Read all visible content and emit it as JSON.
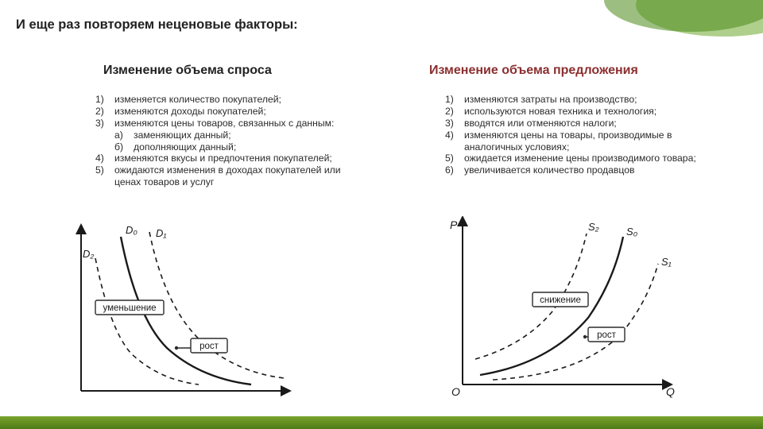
{
  "heading": "И еще раз повторяем неценовые факторы:",
  "left": {
    "title": "Изменение  объема  спроса",
    "items": [
      {
        "n": "1)",
        "t": "изменяется количество покупателей;"
      },
      {
        "n": "2)",
        "t": "изменяются доходы покупателей;"
      },
      {
        "n": "3)",
        "t": "изменяются цены товаров, связанных с данным:"
      },
      {
        "n": "а)",
        "t": "заменяющих данный;",
        "sub": true
      },
      {
        "n": "б)",
        "t": "дополняющих данный;",
        "sub": true
      },
      {
        "n": "4)",
        "t": "изменяются вкусы и предпочтения покупателей;"
      },
      {
        "n": "5)",
        "t": "ожидаются изменения в доходах покупателей или ценах товаров и услуг"
      }
    ],
    "chart": {
      "axis_color": "#1a1a1a",
      "curve_width": 2.4,
      "dash_width": 1.5,
      "dash": "6,5",
      "box_stroke": "#2b2b2b",
      "labels": {
        "d0": "D₀",
        "d1": "D₁",
        "d2": "D₂",
        "dec": "уменьшение",
        "inc": "рост"
      }
    }
  },
  "right": {
    "title": "Изменение объема предложения",
    "items": [
      {
        "n": "1)",
        "t": "изменяются затраты на производство;"
      },
      {
        "n": "2)",
        "t": "используются новая техника и технология;"
      },
      {
        "n": "3)",
        "t": "вводятся или отменяются налоги;"
      },
      {
        "n": "4)",
        "t": "изменяются цены на товары, производимые в аналогичных условиях;"
      },
      {
        "n": "5)",
        "t": "ожидается изменение цены производимого товара;"
      },
      {
        "n": "6)",
        "t": "увеличивается количество продавцов"
      }
    ],
    "chart": {
      "axis_color": "#1a1a1a",
      "curve_width": 2.4,
      "dash_width": 1.5,
      "dash": "6,5",
      "box_stroke": "#2b2b2b",
      "labels": {
        "p": "P",
        "q": "Q",
        "o": "O",
        "s0": "S₀",
        "s1": "S₁",
        "s2": "S₂",
        "dec": "снижение",
        "inc": "рост"
      }
    }
  },
  "style": {
    "heading_fontsize": 16.5,
    "subheading_fontsize": 16,
    "list_fontsize": 12.2,
    "right_title_color": "#8b2f2f",
    "left_title_color": "#222222",
    "chart_label_fontsize": 12
  }
}
